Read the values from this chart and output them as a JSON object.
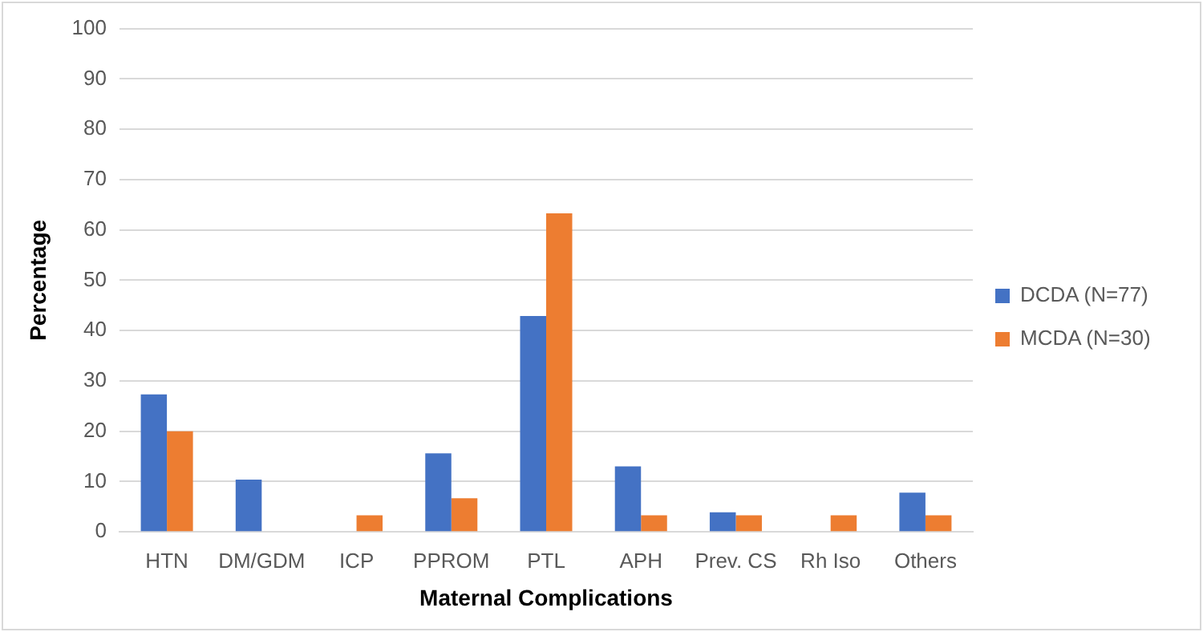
{
  "chart_data": {
    "type": "bar",
    "xlabel": "Maternal Complications",
    "ylabel": "Percentage",
    "categories": [
      "HTN",
      "DM/GDM",
      "ICP",
      "PPROM",
      "PTL",
      "APH",
      "Prev. CS",
      "Rh Iso",
      "Others"
    ],
    "series": [
      {
        "name": "DCDA (N=77)",
        "color": "#4472c4",
        "values": [
          27.3,
          10.4,
          0,
          15.6,
          42.9,
          13,
          3.9,
          0,
          7.8
        ]
      },
      {
        "name": "MCDA (N=30)",
        "color": "#ed7d31",
        "values": [
          20,
          0,
          3.3,
          6.7,
          63.3,
          3.3,
          3.3,
          3.3,
          3.3
        ]
      }
    ],
    "ylim": [
      0,
      100
    ],
    "yticks": [
      0,
      10,
      20,
      30,
      40,
      50,
      60,
      70,
      80,
      90,
      100
    ],
    "grid": "y",
    "legend": "right"
  }
}
